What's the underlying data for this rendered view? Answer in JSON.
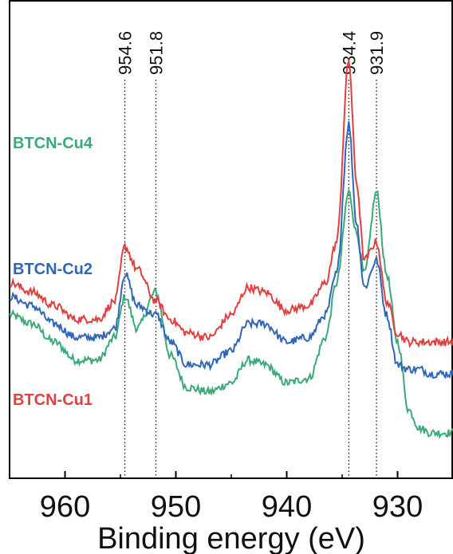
{
  "chart_data": {
    "type": "line",
    "xlabel": "Binding energy (eV)",
    "xlim": [
      965,
      925
    ],
    "x_ticks": [
      960,
      950,
      940,
      930
    ],
    "x_reversed": true,
    "y_ticks_shown": false,
    "reference_lines": [
      {
        "x": 954.6,
        "label": "954.6"
      },
      {
        "x": 951.8,
        "label": "951.8"
      },
      {
        "x": 934.4,
        "label": "934.4"
      },
      {
        "x": 931.9,
        "label": "931.9"
      }
    ],
    "series": [
      {
        "name": "BTCN-Cu4",
        "color": "#3aaa78",
        "points": [
          [
            965,
            0.36
          ],
          [
            963,
            0.34
          ],
          [
            961,
            0.3
          ],
          [
            959,
            0.26
          ],
          [
            957,
            0.26
          ],
          [
            955.5,
            0.31
          ],
          [
            954.6,
            0.4
          ],
          [
            953.5,
            0.33
          ],
          [
            951.8,
            0.41
          ],
          [
            950.5,
            0.27
          ],
          [
            949,
            0.2
          ],
          [
            947,
            0.19
          ],
          [
            945,
            0.21
          ],
          [
            943.5,
            0.26
          ],
          [
            942,
            0.25
          ],
          [
            940,
            0.21
          ],
          [
            938,
            0.22
          ],
          [
            936.5,
            0.31
          ],
          [
            935.5,
            0.43
          ],
          [
            934.4,
            0.63
          ],
          [
            933.7,
            0.54
          ],
          [
            933,
            0.45
          ],
          [
            931.9,
            0.63
          ],
          [
            931,
            0.45
          ],
          [
            930,
            0.3
          ],
          [
            929,
            0.15
          ],
          [
            928,
            0.11
          ],
          [
            927,
            0.1
          ],
          [
            926,
            0.1
          ],
          [
            925,
            0.1
          ]
        ]
      },
      {
        "name": "BTCN-Cu2",
        "color": "#2f66b8",
        "points": [
          [
            965,
            0.4
          ],
          [
            963,
            0.38
          ],
          [
            961,
            0.34
          ],
          [
            959,
            0.31
          ],
          [
            957,
            0.31
          ],
          [
            955.5,
            0.33
          ],
          [
            954.6,
            0.45
          ],
          [
            953.5,
            0.38
          ],
          [
            951.8,
            0.36
          ],
          [
            950.5,
            0.3
          ],
          [
            949,
            0.25
          ],
          [
            947,
            0.25
          ],
          [
            945,
            0.28
          ],
          [
            943.5,
            0.34
          ],
          [
            942,
            0.34
          ],
          [
            940,
            0.3
          ],
          [
            938,
            0.31
          ],
          [
            936.5,
            0.36
          ],
          [
            935.5,
            0.45
          ],
          [
            934.4,
            0.78
          ],
          [
            933.7,
            0.56
          ],
          [
            933,
            0.42
          ],
          [
            931.9,
            0.48
          ],
          [
            931,
            0.36
          ],
          [
            930,
            0.25
          ],
          [
            929,
            0.24
          ],
          [
            928,
            0.24
          ],
          [
            927,
            0.23
          ],
          [
            926,
            0.23
          ],
          [
            925,
            0.23
          ]
        ]
      },
      {
        "name": "BTCN-Cu1",
        "color": "#e04040",
        "points": [
          [
            965,
            0.43
          ],
          [
            963,
            0.41
          ],
          [
            961,
            0.38
          ],
          [
            959,
            0.35
          ],
          [
            957,
            0.35
          ],
          [
            955.5,
            0.39
          ],
          [
            954.6,
            0.51
          ],
          [
            953.5,
            0.46
          ],
          [
            951.8,
            0.39
          ],
          [
            950.5,
            0.35
          ],
          [
            949,
            0.32
          ],
          [
            947,
            0.31
          ],
          [
            945,
            0.36
          ],
          [
            943.5,
            0.42
          ],
          [
            942,
            0.41
          ],
          [
            940,
            0.37
          ],
          [
            938,
            0.38
          ],
          [
            936.5,
            0.43
          ],
          [
            935.5,
            0.52
          ],
          [
            934.4,
            0.92
          ],
          [
            933.7,
            0.65
          ],
          [
            933,
            0.48
          ],
          [
            931.9,
            0.52
          ],
          [
            931,
            0.39
          ],
          [
            930,
            0.32
          ],
          [
            929,
            0.3
          ],
          [
            928,
            0.3
          ],
          [
            927,
            0.3
          ],
          [
            926,
            0.3
          ],
          [
            925,
            0.3
          ]
        ]
      }
    ]
  }
}
